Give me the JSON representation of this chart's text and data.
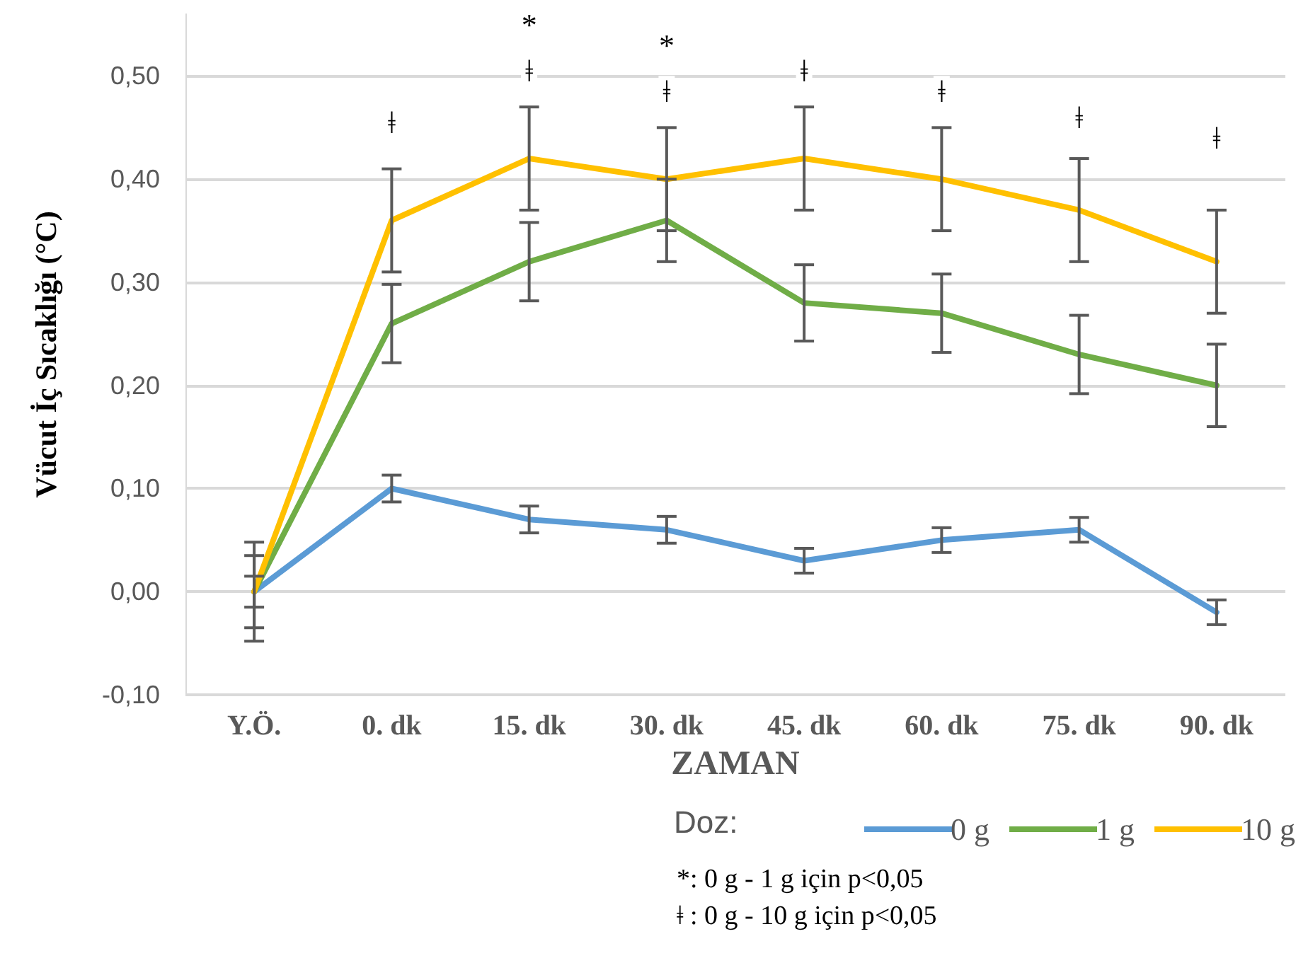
{
  "chart_data": {
    "type": "line",
    "xlabel": "ZAMAN",
    "ylabel": "Vücut İç Sıcaklığı (°C)",
    "legend_title": "Doz:",
    "categories": [
      "Y.Ö.",
      "0. dk",
      "15. dk",
      "30. dk",
      "45. dk",
      "60. dk",
      "75. dk",
      "90. dk"
    ],
    "series": [
      {
        "name": "0 g",
        "color": "#5b9bd5",
        "values": [
          0,
          0.1,
          0.07,
          0.06,
          0.03,
          0.05,
          0.06,
          -0.02
        ],
        "errors": [
          0.015,
          0.013,
          0.013,
          0.013,
          0.012,
          0.012,
          0.012,
          0.012
        ]
      },
      {
        "name": "1 g",
        "color": "#70ad47",
        "values": [
          0,
          0.26,
          0.32,
          0.36,
          0.28,
          0.27,
          0.23,
          0.2
        ],
        "errors": [
          0.035,
          0.038,
          0.038,
          0.04,
          0.037,
          0.038,
          0.038,
          0.04
        ]
      },
      {
        "name": "10 g",
        "color": "#ffc000",
        "values": [
          0,
          0.36,
          0.42,
          0.4,
          0.42,
          0.4,
          0.37,
          0.32
        ],
        "errors": [
          0.048,
          0.05,
          0.05,
          0.05,
          0.05,
          0.05,
          0.05,
          0.05
        ]
      }
    ],
    "ylim": [
      -0.1,
      0.56
    ],
    "yticks": [
      {
        "value": -0.1,
        "label": "-0,10"
      },
      {
        "value": 0,
        "label": "0,00"
      },
      {
        "value": 0.1,
        "label": "0,10"
      },
      {
        "value": 0.2,
        "label": "0,20"
      },
      {
        "value": 0.3,
        "label": "0,30"
      },
      {
        "value": 0.4,
        "label": "0,40"
      },
      {
        "value": 0.5,
        "label": "0,50"
      }
    ],
    "grid": "y",
    "legend": "bottom right",
    "marker": "none",
    "line_style": "solid",
    "annotations": [
      {
        "text": "ǂ",
        "x": "0. dk",
        "y": 0.455
      },
      {
        "text": "ǂ",
        "x": "15. dk",
        "y": 0.505
      },
      {
        "text": "*",
        "x": "15. dk",
        "y": 0.55
      },
      {
        "text": "ǂ",
        "x": "30. dk",
        "y": 0.485
      },
      {
        "text": "*",
        "x": "30. dk",
        "y": 0.53
      },
      {
        "text": "ǂ",
        "x": "45. dk",
        "y": 0.505
      },
      {
        "text": "ǂ",
        "x": "60. dk",
        "y": 0.485
      },
      {
        "text": "ǂ",
        "x": "75. dk",
        "y": 0.46
      },
      {
        "text": "ǂ",
        "x": "90. dk",
        "y": 0.44
      },
      "*: 0 g - 1 g için p<0,05",
      "ǂ : 0 g - 10 g için p<0,05"
    ]
  }
}
